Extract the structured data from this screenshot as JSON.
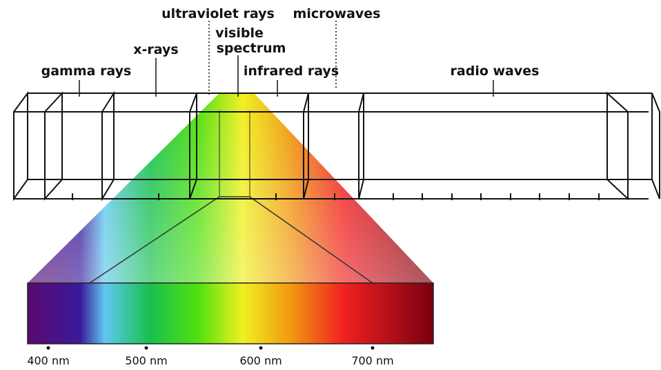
{
  "labels": [
    "ultraviolet rays",
    "microwaves",
    "visible",
    "spectrum",
    "x-rays",
    "gamma rays",
    "infrared rays",
    "radio waves"
  ],
  "scale": [
    "400 nm",
    "500 nm",
    "600 nm",
    "700 nm"
  ]
}
